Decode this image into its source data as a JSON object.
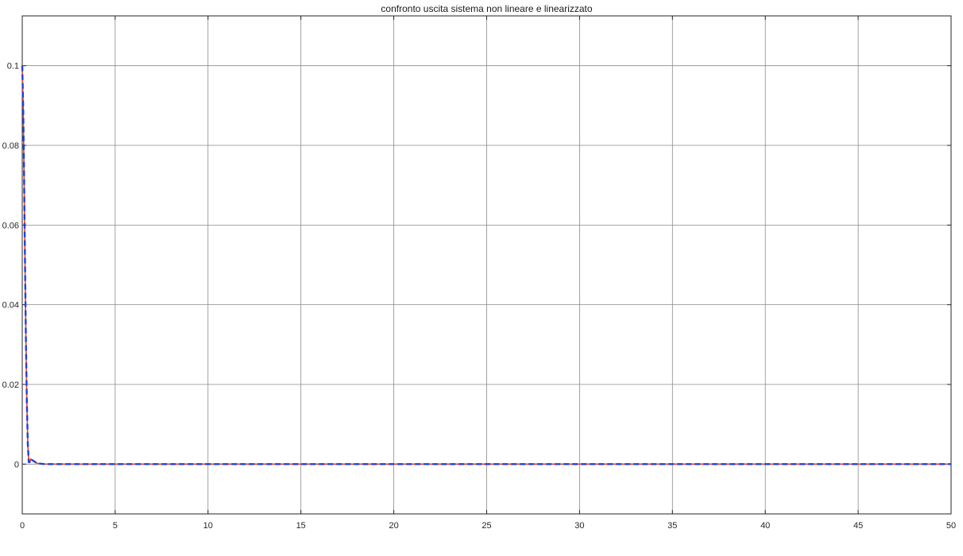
{
  "chart_data": {
    "type": "line",
    "title": "confronto uscita sistema non lineare e linearizzato",
    "xlabel": "",
    "ylabel": "",
    "xlim": [
      0,
      50
    ],
    "ylim": [
      -0.0125,
      0.1125
    ],
    "xticks": [
      0,
      5,
      10,
      15,
      20,
      25,
      30,
      35,
      40,
      45,
      50
    ],
    "xtick_labels": [
      "0",
      "5",
      "10",
      "15",
      "20",
      "25",
      "30",
      "35",
      "40",
      "45",
      "50"
    ],
    "yticks": [
      0,
      0.02,
      0.04,
      0.06,
      0.08,
      0.1
    ],
    "ytick_labels": [
      "0",
      "0.02",
      "0.04",
      "0.06",
      "0.08",
      "0.1"
    ],
    "grid": true,
    "legend": "none",
    "series": [
      {
        "color": "#e8431b",
        "style": "solid",
        "x": [
          0,
          0.05,
          0.1,
          0.15,
          0.2,
          0.25,
          0.3,
          0.35,
          0.4,
          0.45,
          0.5,
          0.6,
          0.7,
          0.8,
          1.0,
          1.2,
          1.5,
          2,
          5,
          10,
          20,
          30,
          40,
          50
        ],
        "y": [
          0.1,
          0.09,
          0.072,
          0.05,
          0.03,
          0.015,
          0.005,
          0.0005,
          0.0005,
          0.0013,
          0.0011,
          0.0008,
          0.0005,
          0.0002,
          0.0001,
          0,
          0,
          0,
          0,
          0,
          0,
          0,
          0,
          0
        ]
      },
      {
        "color": "#1f3fe0",
        "style": "dashed",
        "x": [
          0,
          0.05,
          0.1,
          0.15,
          0.2,
          0.25,
          0.3,
          0.35,
          0.4,
          0.45,
          0.5,
          0.6,
          0.7,
          0.8,
          1.0,
          1.2,
          1.5,
          2,
          5,
          10,
          20,
          30,
          40,
          50
        ],
        "y": [
          0.1,
          0.09,
          0.072,
          0.05,
          0.03,
          0.015,
          0.005,
          0.0005,
          0.0005,
          0.0013,
          0.0011,
          0.0008,
          0.0005,
          0.0002,
          0.0001,
          0,
          0,
          0,
          0,
          0,
          0,
          0,
          0,
          0
        ]
      }
    ]
  }
}
